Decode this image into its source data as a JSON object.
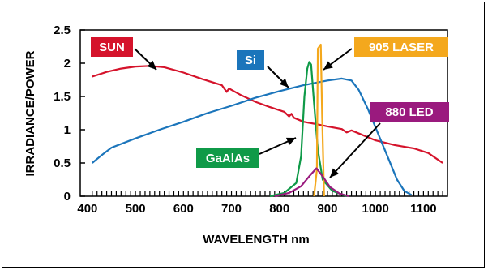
{
  "chart_data": {
    "type": "line",
    "xlabel": "WAVELENGTH nm",
    "ylabel": "IRRADIANCE/POWER",
    "xlim": [
      385,
      1150
    ],
    "ylim": [
      0,
      2.5
    ],
    "x_ticks": [
      400,
      500,
      600,
      700,
      800,
      900,
      1000,
      1100
    ],
    "y_ticks": [
      0,
      0.5,
      1,
      1.5,
      2,
      2.5
    ],
    "y_tick_labels": [
      "0",
      "0.5",
      "1",
      "1.5",
      "2",
      "2.5"
    ],
    "legend": "annotations",
    "series": [
      {
        "name": "SUN",
        "color": "#d5132b",
        "points": [
          [
            410,
            1.8
          ],
          [
            440,
            1.87
          ],
          [
            470,
            1.92
          ],
          [
            500,
            1.95
          ],
          [
            530,
            1.96
          ],
          [
            560,
            1.94
          ],
          [
            600,
            1.86
          ],
          [
            640,
            1.76
          ],
          [
            680,
            1.67
          ],
          [
            690,
            1.57
          ],
          [
            695,
            1.62
          ],
          [
            700,
            1.6
          ],
          [
            720,
            1.52
          ],
          [
            750,
            1.42
          ],
          [
            780,
            1.34
          ],
          [
            810,
            1.27
          ],
          [
            820,
            1.2
          ],
          [
            825,
            1.24
          ],
          [
            830,
            1.18
          ],
          [
            850,
            1.12
          ],
          [
            880,
            1.08
          ],
          [
            900,
            1.05
          ],
          [
            930,
            1.01
          ],
          [
            940,
            0.96
          ],
          [
            950,
            0.99
          ],
          [
            980,
            0.9
          ],
          [
            1000,
            0.84
          ],
          [
            1040,
            0.77
          ],
          [
            1080,
            0.72
          ],
          [
            1110,
            0.65
          ],
          [
            1140,
            0.5
          ]
        ]
      },
      {
        "name": "Si",
        "color": "#1b75bb",
        "points": [
          [
            410,
            0.5
          ],
          [
            430,
            0.62
          ],
          [
            450,
            0.73
          ],
          [
            500,
            0.87
          ],
          [
            550,
            1.0
          ],
          [
            600,
            1.12
          ],
          [
            650,
            1.25
          ],
          [
            700,
            1.36
          ],
          [
            750,
            1.48
          ],
          [
            800,
            1.58
          ],
          [
            850,
            1.67
          ],
          [
            900,
            1.74
          ],
          [
            930,
            1.77
          ],
          [
            950,
            1.74
          ],
          [
            965,
            1.6
          ],
          [
            985,
            1.3
          ],
          [
            1005,
            0.95
          ],
          [
            1025,
            0.6
          ],
          [
            1045,
            0.25
          ],
          [
            1060,
            0.08
          ],
          [
            1075,
            0.02
          ]
        ]
      },
      {
        "name": "GaAlAs",
        "color": "#0f9a48",
        "points": [
          [
            780,
            0.0
          ],
          [
            810,
            0.05
          ],
          [
            835,
            0.2
          ],
          [
            845,
            0.6
          ],
          [
            852,
            1.5
          ],
          [
            858,
            1.92
          ],
          [
            862,
            2.02
          ],
          [
            866,
            1.98
          ],
          [
            872,
            1.4
          ],
          [
            880,
            0.7
          ],
          [
            890,
            0.25
          ],
          [
            910,
            0.08
          ],
          [
            940,
            0.0
          ]
        ]
      },
      {
        "name": "905 LASER",
        "color": "#f4a81d",
        "points": [
          [
            872,
            0.0
          ],
          [
            878,
            0.4
          ],
          [
            880,
            2.22
          ],
          [
            886,
            2.28
          ],
          [
            889,
            1.2
          ],
          [
            893,
            0.0
          ]
        ]
      },
      {
        "name": "880 LED",
        "color": "#9a1a7e",
        "points": [
          [
            790,
            0.0
          ],
          [
            820,
            0.05
          ],
          [
            845,
            0.15
          ],
          [
            862,
            0.3
          ],
          [
            877,
            0.42
          ],
          [
            890,
            0.3
          ],
          [
            905,
            0.14
          ],
          [
            925,
            0.04
          ],
          [
            945,
            0.0
          ]
        ]
      }
    ],
    "annotations": [
      {
        "text": "SUN",
        "bg": "#d5132b"
      },
      {
        "text": "Si",
        "bg": "#1b75bb"
      },
      {
        "text": "905 LASER",
        "bg": "#f4a81d"
      },
      {
        "text": "GaAlAs",
        "bg": "#0f9a48"
      },
      {
        "text": "880 LED",
        "bg": "#9a1a7e"
      }
    ]
  }
}
